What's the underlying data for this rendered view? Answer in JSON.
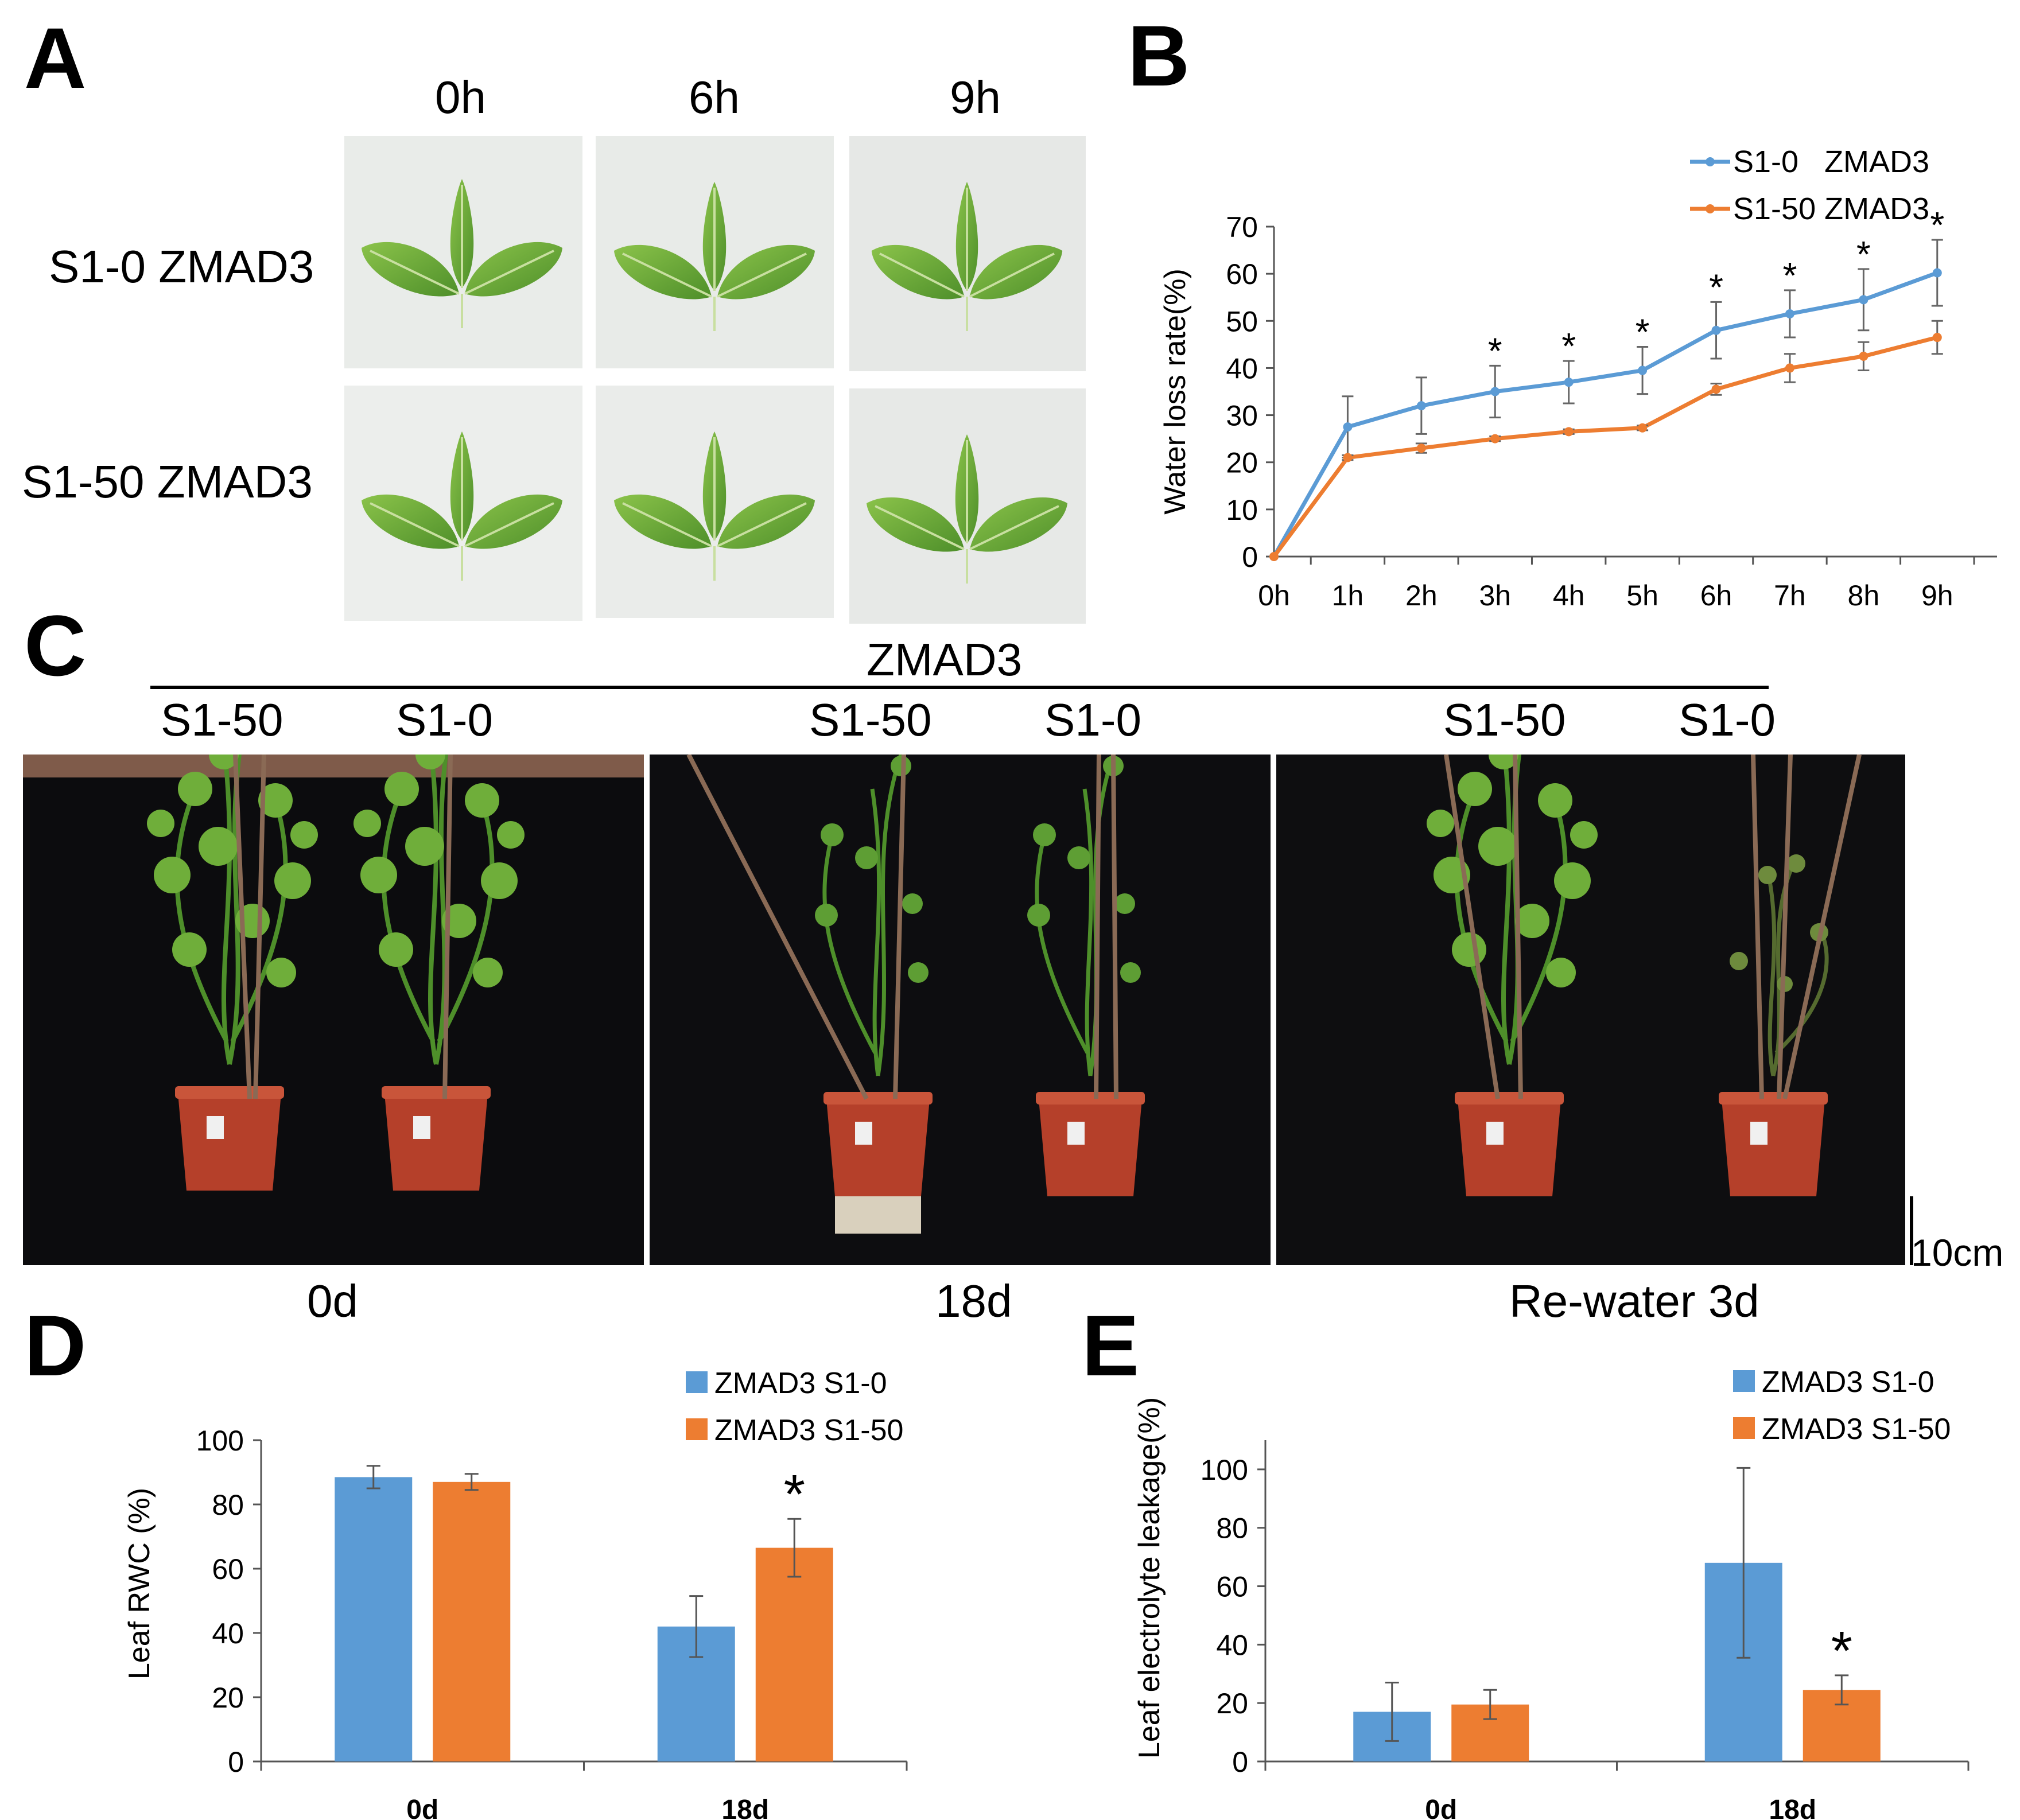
{
  "panels": {
    "A": {
      "letter": "A",
      "columns": [
        "0h",
        "6h",
        "9h"
      ],
      "rows": [
        "S1-0 ZMAD3",
        "S1-50 ZMAD3"
      ]
    },
    "B": {
      "letter": "B"
    },
    "C": {
      "letter": "C",
      "group_label": "ZMAD3",
      "plant_labels": [
        "S1-50",
        "S1-0",
        "S1-50",
        "S1-0",
        "S1-50",
        "S1-0"
      ],
      "time_labels": [
        "0d",
        "18d",
        "Re-water 3d"
      ],
      "scale_bar": "10cm"
    },
    "D": {
      "letter": "D"
    },
    "E": {
      "letter": "E"
    }
  },
  "colors": {
    "blue": "#5B9BD5",
    "orange": "#ED7D31",
    "leaf": "#6FAE3A",
    "leaf_dark": "#3E7A1E",
    "photo_bg": "#0c0c0e",
    "pot": "#B5402A"
  },
  "chart_data": [
    {
      "id": "B",
      "type": "line",
      "title": "",
      "xlabel": "",
      "ylabel": "Water loss rate(%)",
      "categories": [
        "0h",
        "1h",
        "2h",
        "3h",
        "4h",
        "5h",
        "6h",
        "7h",
        "8h",
        "9h"
      ],
      "ylim": [
        0,
        70
      ],
      "yticks": [
        0,
        10,
        20,
        30,
        40,
        50,
        60,
        70
      ],
      "legend_position": "top-right",
      "series": [
        {
          "name": "S1-0   ZMAD3",
          "color_key": "blue",
          "values": [
            0,
            27.5,
            32,
            35,
            37,
            39.5,
            48,
            51.5,
            54.5,
            60.2
          ],
          "errors": [
            0,
            6.5,
            6,
            5.5,
            4.5,
            5,
            6,
            5,
            6.5,
            7
          ]
        },
        {
          "name": "S1-50 ZMAD3",
          "color_key": "orange",
          "values": [
            0,
            21,
            23,
            25,
            26.5,
            27.3,
            35.5,
            40,
            42.5,
            46.5
          ],
          "errors": [
            0,
            0.5,
            1,
            0.5,
            0.5,
            0.5,
            1.2,
            3,
            3,
            3.5
          ]
        }
      ],
      "significance": [
        "",
        "",
        "",
        "*",
        "*",
        "*",
        "*",
        "*",
        "*",
        "*"
      ]
    },
    {
      "id": "D",
      "type": "bar",
      "title": "",
      "xlabel": "",
      "ylabel": "Leaf RWC (%)",
      "categories": [
        "0d",
        "18d"
      ],
      "ylim": [
        0,
        100
      ],
      "yticks": [
        0,
        20,
        40,
        60,
        80,
        100
      ],
      "legend_position": "top-right",
      "series": [
        {
          "name": "ZMAD3 S1-0",
          "color_key": "blue",
          "values": [
            88.5,
            42
          ],
          "errors": [
            3.5,
            9.5
          ]
        },
        {
          "name": "ZMAD3 S1-50",
          "color_key": "orange",
          "values": [
            87,
            66.5
          ],
          "errors": [
            2.5,
            9
          ]
        }
      ],
      "significance": [
        "",
        "*"
      ]
    },
    {
      "id": "E",
      "type": "bar",
      "title": "",
      "xlabel": "",
      "ylabel": "Leaf electrolyte leakage(%)",
      "categories": [
        "0d",
        "18d"
      ],
      "ylim": [
        0,
        110
      ],
      "yticks": [
        0,
        20,
        40,
        60,
        80,
        100
      ],
      "legend_position": "top-right",
      "series": [
        {
          "name": "ZMAD3 S1-0",
          "color_key": "blue",
          "values": [
            17,
            68
          ],
          "errors": [
            10,
            32.5
          ]
        },
        {
          "name": "ZMAD3 S1-50",
          "color_key": "orange",
          "values": [
            19.5,
            24.5
          ],
          "errors": [
            5,
            5
          ]
        }
      ],
      "significance": [
        "",
        "*"
      ]
    }
  ]
}
